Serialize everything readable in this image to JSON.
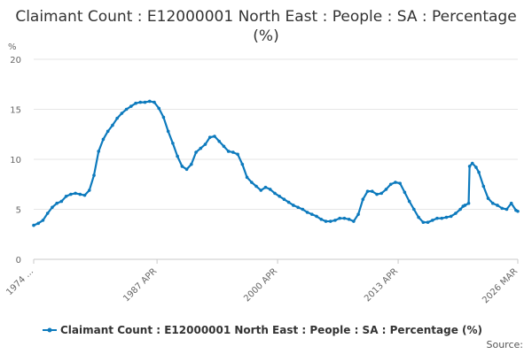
{
  "chart_data": {
    "type": "line",
    "title": "Claimant Count : E12000001 North East : People : SA : Percentage (%)",
    "ylabel": "%",
    "xlabel": "",
    "ylim": [
      0,
      20
    ],
    "yticks": [
      0,
      5,
      10,
      15,
      20
    ],
    "x_start_year": 1974,
    "x_end_year": 2026.2,
    "xtick_labels": [
      {
        "label": "1974 ...",
        "year": 1974.0
      },
      {
        "label": "1987 APR",
        "year": 1987.3
      },
      {
        "label": "2000 APR",
        "year": 2000.3
      },
      {
        "label": "2013 APR",
        "year": 2013.3
      },
      {
        "label": "2026 MAR",
        "year": 2026.2
      }
    ],
    "grid": true,
    "legend_position": "bottom",
    "series": [
      {
        "name": "Claimant Count : E12000001 North East : People : SA : Percentage (%)",
        "color": "#0d7abd",
        "points": [
          [
            1974.0,
            3.4
          ],
          [
            1974.5,
            3.6
          ],
          [
            1975.0,
            3.9
          ],
          [
            1975.5,
            4.6
          ],
          [
            1976.0,
            5.2
          ],
          [
            1976.5,
            5.6
          ],
          [
            1977.0,
            5.8
          ],
          [
            1977.5,
            6.3
          ],
          [
            1978.0,
            6.5
          ],
          [
            1978.5,
            6.6
          ],
          [
            1979.0,
            6.5
          ],
          [
            1979.5,
            6.4
          ],
          [
            1980.0,
            6.9
          ],
          [
            1980.5,
            8.4
          ],
          [
            1981.0,
            10.8
          ],
          [
            1981.5,
            12.0
          ],
          [
            1982.0,
            12.8
          ],
          [
            1982.5,
            13.4
          ],
          [
            1983.0,
            14.1
          ],
          [
            1983.5,
            14.6
          ],
          [
            1984.0,
            15.0
          ],
          [
            1984.5,
            15.3
          ],
          [
            1985.0,
            15.6
          ],
          [
            1985.5,
            15.7
          ],
          [
            1986.0,
            15.7
          ],
          [
            1986.5,
            15.8
          ],
          [
            1987.0,
            15.7
          ],
          [
            1987.5,
            15.1
          ],
          [
            1988.0,
            14.2
          ],
          [
            1988.5,
            12.8
          ],
          [
            1989.0,
            11.6
          ],
          [
            1989.5,
            10.3
          ],
          [
            1990.0,
            9.3
          ],
          [
            1990.5,
            9.0
          ],
          [
            1991.0,
            9.5
          ],
          [
            1991.5,
            10.7
          ],
          [
            1992.0,
            11.1
          ],
          [
            1992.5,
            11.5
          ],
          [
            1993.0,
            12.2
          ],
          [
            1993.5,
            12.3
          ],
          [
            1994.0,
            11.8
          ],
          [
            1994.5,
            11.3
          ],
          [
            1995.0,
            10.8
          ],
          [
            1995.5,
            10.7
          ],
          [
            1996.0,
            10.5
          ],
          [
            1996.5,
            9.5
          ],
          [
            1997.0,
            8.2
          ],
          [
            1997.5,
            7.7
          ],
          [
            1998.0,
            7.3
          ],
          [
            1998.5,
            6.9
          ],
          [
            1999.0,
            7.2
          ],
          [
            1999.5,
            7.0
          ],
          [
            2000.0,
            6.6
          ],
          [
            2000.5,
            6.3
          ],
          [
            2001.0,
            6.0
          ],
          [
            2001.5,
            5.7
          ],
          [
            2002.0,
            5.4
          ],
          [
            2002.5,
            5.2
          ],
          [
            2003.0,
            5.0
          ],
          [
            2003.5,
            4.7
          ],
          [
            2004.0,
            4.5
          ],
          [
            2004.5,
            4.3
          ],
          [
            2005.0,
            4.0
          ],
          [
            2005.5,
            3.8
          ],
          [
            2006.0,
            3.8
          ],
          [
            2006.5,
            3.9
          ],
          [
            2007.0,
            4.1
          ],
          [
            2007.5,
            4.1
          ],
          [
            2008.0,
            4.0
          ],
          [
            2008.5,
            3.8
          ],
          [
            2009.0,
            4.5
          ],
          [
            2009.5,
            6.0
          ],
          [
            2010.0,
            6.8
          ],
          [
            2010.5,
            6.8
          ],
          [
            2011.0,
            6.5
          ],
          [
            2011.5,
            6.6
          ],
          [
            2012.0,
            7.0
          ],
          [
            2012.5,
            7.5
          ],
          [
            2013.0,
            7.7
          ],
          [
            2013.5,
            7.6
          ],
          [
            2014.0,
            6.7
          ],
          [
            2014.5,
            5.8
          ],
          [
            2015.0,
            5.0
          ],
          [
            2015.5,
            4.2
          ],
          [
            2016.0,
            3.7
          ],
          [
            2016.5,
            3.7
          ],
          [
            2017.0,
            3.9
          ],
          [
            2017.5,
            4.1
          ],
          [
            2018.0,
            4.1
          ],
          [
            2018.5,
            4.2
          ],
          [
            2019.0,
            4.3
          ],
          [
            2019.5,
            4.6
          ],
          [
            2020.0,
            5.0
          ],
          [
            2020.3,
            5.3
          ],
          [
            2020.5,
            5.4
          ],
          [
            2020.9,
            5.6
          ],
          [
            2021.0,
            9.3
          ],
          [
            2021.3,
            9.6
          ],
          [
            2021.7,
            9.2
          ],
          [
            2022.0,
            8.7
          ],
          [
            2022.5,
            7.3
          ],
          [
            2023.0,
            6.1
          ],
          [
            2023.5,
            5.6
          ],
          [
            2024.0,
            5.4
          ],
          [
            2024.5,
            5.1
          ],
          [
            2025.0,
            5.0
          ],
          [
            2025.5,
            5.6
          ],
          [
            2026.0,
            4.9
          ],
          [
            2026.2,
            4.8
          ]
        ]
      }
    ]
  },
  "source_label": "Source:"
}
